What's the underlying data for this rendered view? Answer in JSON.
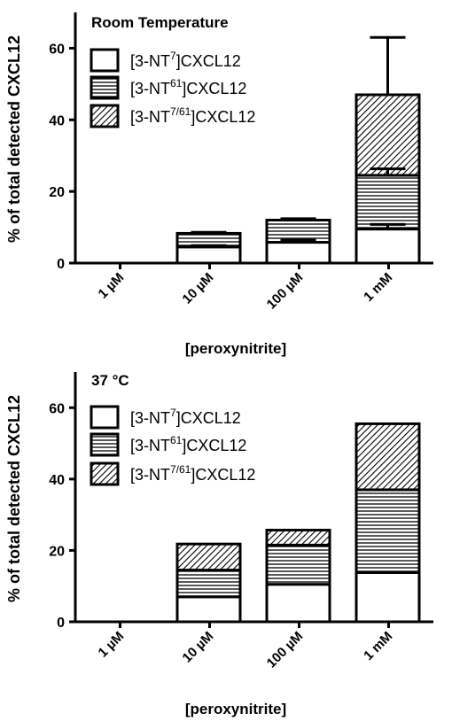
{
  "chart_data": [
    {
      "type": "bar",
      "stacked": true,
      "title": "Room Temperature",
      "xlabel": "[peroxynitrite]",
      "ylabel": "% of total detected CXCL12",
      "categories": [
        "1 µM",
        "10 µM",
        "100 µM",
        "1 mM"
      ],
      "ylim": [
        0,
        70
      ],
      "yticks": [
        0,
        20,
        40,
        60
      ],
      "legend_position": "top-left",
      "series": [
        {
          "name": "[3-NT7]CXCL12",
          "legend": {
            "pre": "[3-NT",
            "sup": "7",
            "post": "]CXCL12"
          },
          "fill": "white",
          "values": [
            0,
            4.5,
            5.8,
            9.5
          ],
          "errors": [
            0,
            0.4,
            0.6,
            1.3
          ]
        },
        {
          "name": "[3-NT61]CXCL12",
          "legend": {
            "pre": "[3-NT",
            "sup": "61",
            "post": "]CXCL12"
          },
          "fill": "horizontal",
          "values": [
            0,
            3.8,
            6.2,
            15.0
          ],
          "errors": [
            0,
            0.3,
            0.4,
            1.8
          ]
        },
        {
          "name": "[3-NT7/61]CXCL12",
          "legend": {
            "pre": "[3-NT",
            "sup": "7/61",
            "post": "]CXCL12"
          },
          "fill": "diagonal",
          "values": [
            0,
            0,
            0,
            22.5
          ],
          "errors": [
            0,
            0,
            0,
            16.0
          ]
        }
      ]
    },
    {
      "type": "bar",
      "stacked": true,
      "title": "37 °C",
      "xlabel": "[peroxynitrite]",
      "ylabel": "% of total detected CXCL12",
      "categories": [
        "1 µM",
        "10 µM",
        "100 µM",
        "1 mM"
      ],
      "ylim": [
        0,
        70
      ],
      "yticks": [
        0,
        20,
        40,
        60
      ],
      "legend_position": "top-left",
      "series": [
        {
          "name": "[3-NT7]CXCL12",
          "legend": {
            "pre": "[3-NT",
            "sup": "7",
            "post": "]CXCL12"
          },
          "fill": "white",
          "values": [
            0,
            7.0,
            10.5,
            13.8
          ],
          "errors": [
            0,
            0,
            0,
            0
          ]
        },
        {
          "name": "[3-NT61]CXCL12",
          "legend": {
            "pre": "[3-NT",
            "sup": "61",
            "post": "]CXCL12"
          },
          "fill": "horizontal",
          "values": [
            0,
            7.5,
            11.0,
            23.2
          ],
          "errors": [
            0,
            0,
            0,
            0
          ]
        },
        {
          "name": "[3-NT7/61]CXCL12",
          "legend": {
            "pre": "[3-NT",
            "sup": "7/61",
            "post": "]CXCL12"
          },
          "fill": "diagonal",
          "values": [
            0,
            7.3,
            4.2,
            18.5
          ],
          "errors": [
            0,
            0,
            0,
            0
          ]
        }
      ]
    }
  ]
}
